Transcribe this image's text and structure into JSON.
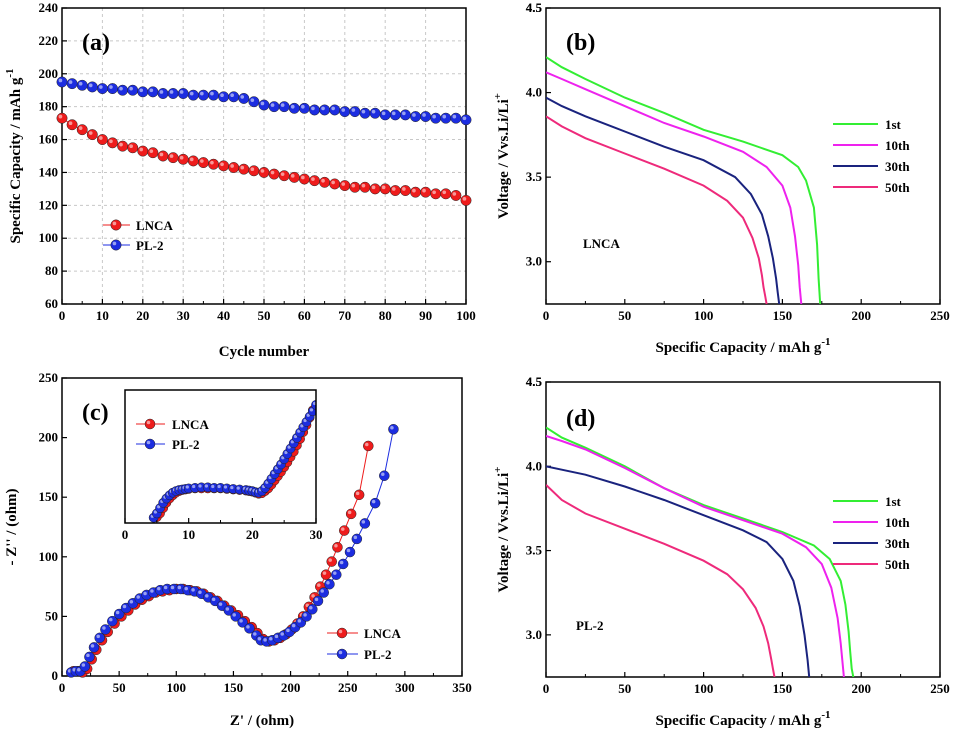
{
  "chart_data": [
    {
      "id": "a",
      "type": "scatter",
      "panel_label": "(a)",
      "xlabel": "Cycle number",
      "ylabel": "Specific Capacity / mAh g",
      "ylabel_sup": "-1",
      "xlim": [
        0,
        100
      ],
      "ylim": [
        60,
        240
      ],
      "xticks": [
        0,
        10,
        20,
        30,
        40,
        50,
        60,
        70,
        80,
        90,
        100
      ],
      "yticks": [
        60,
        80,
        100,
        120,
        140,
        160,
        180,
        200,
        220,
        240
      ],
      "grid": true,
      "legend_position": "lower-left",
      "series": [
        {
          "name": "LNCA",
          "color": "#ee1c1c",
          "x": [
            0,
            2.5,
            5,
            7.5,
            10,
            12.5,
            15,
            17.5,
            20,
            22.5,
            25,
            27.5,
            30,
            32.5,
            35,
            37.5,
            40,
            42.5,
            45,
            47.5,
            50,
            52.5,
            55,
            57.5,
            60,
            62.5,
            65,
            67.5,
            70,
            72.5,
            75,
            77.5,
            80,
            82.5,
            85,
            87.5,
            90,
            92.5,
            95,
            97.5,
            100
          ],
          "y": [
            173,
            169,
            166,
            163,
            160,
            158,
            156,
            155,
            153,
            152,
            150,
            149,
            148,
            147,
            146,
            145,
            144,
            143,
            142,
            141,
            140,
            139,
            138,
            137,
            136,
            135,
            134,
            133,
            132,
            131,
            131,
            130,
            130,
            129,
            129,
            128,
            128,
            127,
            127,
            126,
            123
          ]
        },
        {
          "name": "PL-2",
          "color": "#1c2de0",
          "x": [
            0,
            2.5,
            5,
            7.5,
            10,
            12.5,
            15,
            17.5,
            20,
            22.5,
            25,
            27.5,
            30,
            32.5,
            35,
            37.5,
            40,
            42.5,
            45,
            47.5,
            50,
            52.5,
            55,
            57.5,
            60,
            62.5,
            65,
            67.5,
            70,
            72.5,
            75,
            77.5,
            80,
            82.5,
            85,
            87.5,
            90,
            92.5,
            95,
            97.5,
            100
          ],
          "y": [
            195,
            194,
            193,
            192,
            191,
            191,
            190,
            190,
            189,
            189,
            188,
            188,
            188,
            187,
            187,
            187,
            186,
            186,
            185,
            183,
            181,
            180,
            180,
            179,
            179,
            178,
            178,
            178,
            177,
            177,
            176,
            176,
            175,
            175,
            175,
            174,
            174,
            173,
            173,
            173,
            172
          ]
        }
      ]
    },
    {
      "id": "b",
      "type": "line",
      "panel_label": "(b)",
      "xlabel": "Specific Capacity / mAh g",
      "xlabel_sup": "-1",
      "ylabel": "Voltage / Vvs.Li/Li",
      "ylabel_sup": "+",
      "xlim": [
        0,
        250
      ],
      "ylim": [
        2.75,
        4.5
      ],
      "xticks": [
        0,
        50,
        100,
        150,
        200,
        250
      ],
      "yticks": [
        3.0,
        3.5,
        4.0,
        4.5
      ],
      "annotation": "LNCA",
      "legend_position": "right",
      "series": [
        {
          "name": "1st",
          "color": "#33ee33",
          "x": [
            0,
            10,
            25,
            50,
            75,
            100,
            125,
            150,
            160,
            165,
            170,
            172,
            173,
            174
          ],
          "y": [
            4.21,
            4.15,
            4.08,
            3.97,
            3.88,
            3.78,
            3.71,
            3.63,
            3.56,
            3.48,
            3.32,
            3.1,
            2.9,
            2.75
          ]
        },
        {
          "name": "10th",
          "color": "#ee22ee",
          "x": [
            0,
            10,
            25,
            50,
            75,
            100,
            125,
            140,
            150,
            155,
            158,
            160,
            161,
            162
          ],
          "y": [
            4.12,
            4.08,
            4.02,
            3.92,
            3.82,
            3.74,
            3.65,
            3.56,
            3.45,
            3.32,
            3.15,
            2.98,
            2.85,
            2.75
          ]
        },
        {
          "name": "30th",
          "color": "#1a237e",
          "x": [
            0,
            10,
            25,
            50,
            75,
            100,
            120,
            130,
            137,
            141,
            144,
            146,
            147,
            148
          ],
          "y": [
            3.97,
            3.92,
            3.86,
            3.77,
            3.68,
            3.6,
            3.5,
            3.4,
            3.28,
            3.15,
            3.02,
            2.9,
            2.82,
            2.75
          ]
        },
        {
          "name": "50th",
          "color": "#ee2a7b",
          "x": [
            0,
            10,
            25,
            50,
            75,
            100,
            115,
            125,
            131,
            135,
            137,
            138,
            139,
            140
          ],
          "y": [
            3.86,
            3.8,
            3.73,
            3.64,
            3.55,
            3.45,
            3.36,
            3.26,
            3.14,
            3.02,
            2.92,
            2.85,
            2.8,
            2.75
          ]
        }
      ]
    },
    {
      "id": "c",
      "type": "scatter",
      "panel_label": "(c)",
      "xlabel": "Z' / (ohm)",
      "ylabel": "- Z'' / (ohm)",
      "xlim": [
        0,
        350
      ],
      "ylim": [
        0,
        250
      ],
      "xticks": [
        0,
        50,
        100,
        150,
        200,
        250,
        300,
        350
      ],
      "yticks": [
        0,
        50,
        100,
        150,
        200,
        250
      ],
      "legend_position": "lower-right",
      "series": [
        {
          "name": "LNCA",
          "color": "#ee1c1c",
          "x": [
            10,
            14,
            18,
            22,
            26,
            30,
            35,
            40,
            46,
            52,
            58,
            64,
            70,
            76,
            82,
            88,
            94,
            100,
            106,
            112,
            118,
            124,
            130,
            136,
            142,
            148,
            154,
            160,
            166,
            171,
            176,
            181,
            186,
            191,
            196,
            201,
            206,
            211,
            216,
            221,
            226,
            231,
            236,
            241,
            247,
            253,
            260,
            268
          ],
          "y": [
            4,
            4,
            3,
            6,
            14,
            22,
            30,
            37,
            44,
            50,
            55,
            60,
            64,
            67,
            70,
            71,
            72,
            73,
            73,
            72,
            71,
            69,
            66,
            63,
            59,
            55,
            51,
            46,
            41,
            36,
            31,
            29,
            30,
            32,
            35,
            39,
            44,
            50,
            58,
            66,
            75,
            85,
            96,
            108,
            122,
            136,
            152,
            193
          ]
        },
        {
          "name": "PL-2",
          "color": "#1c2de0",
          "x": [
            8,
            12,
            16,
            20,
            24,
            28,
            33,
            38,
            44,
            50,
            56,
            62,
            68,
            74,
            80,
            86,
            92,
            98,
            104,
            110,
            116,
            122,
            128,
            134,
            140,
            146,
            152,
            158,
            164,
            170,
            174,
            179,
            184,
            189,
            194,
            199,
            204,
            209,
            214,
            219,
            224,
            229,
            234,
            240,
            246,
            252,
            258,
            265,
            274,
            282,
            290
          ],
          "y": [
            3,
            4,
            4,
            8,
            16,
            24,
            32,
            39,
            46,
            52,
            57,
            61,
            65,
            68,
            70,
            72,
            73,
            73,
            73,
            72,
            71,
            69,
            66,
            63,
            59,
            55,
            50,
            45,
            40,
            34,
            30,
            29,
            30,
            32,
            34,
            37,
            41,
            45,
            50,
            56,
            63,
            70,
            77,
            85,
            94,
            104,
            115,
            128,
            145,
            168,
            207
          ]
        }
      ],
      "inset": {
        "xlim": [
          0,
          30
        ],
        "ylim": [
          0,
          250
        ],
        "xticks": [
          0,
          10,
          20,
          30
        ],
        "legend_position": "top-left",
        "series": [
          {
            "name": "LNCA",
            "color": "#ee1c1c",
            "x": [
              5,
              5.5,
              6,
              6.5,
              7,
              7.5,
              8,
              8.5,
              9,
              9.5,
              10,
              11,
              12,
              13,
              14,
              15,
              16,
              17,
              18,
              19,
              19.5,
              20,
              20.5,
              21,
              21.5,
              22,
              22.5,
              23,
              23.5,
              24,
              24.5,
              25,
              25.5,
              26,
              26.5,
              27,
              27.5,
              28,
              28.5,
              29,
              29.5
            ],
            "y": [
              11,
              18,
              28,
              38,
              46,
              52,
              57,
              60,
              62,
              63,
              64,
              65,
              65,
              65,
              65,
              65,
              64,
              63,
              62,
              61,
              60,
              59,
              57,
              55,
              56,
              60,
              65,
              72,
              80,
              88,
              96,
              105,
              114,
              124,
              134,
              146,
              158,
              171,
              184,
              198,
              212
            ]
          },
          {
            "name": "PL-2",
            "color": "#1c2de0",
            "x": [
              4.5,
              5,
              5.5,
              6,
              6.5,
              7,
              7.5,
              8,
              8.5,
              9,
              9.5,
              10,
              11,
              12,
              13,
              14,
              15,
              16,
              17,
              18,
              19,
              19.5,
              20,
              20.5,
              21,
              21.5,
              22,
              22.5,
              23,
              23.5,
              24,
              24.5,
              25,
              25.5,
              26,
              26.5,
              27,
              27.5,
              28,
              28.5,
              29,
              29.5,
              30
            ],
            "y": [
              10,
              18,
              28,
              38,
              46,
              52,
              57,
              60,
              62,
              63,
              64,
              65,
              66,
              67,
              67,
              66,
              66,
              65,
              64,
              63,
              62,
              61,
              60,
              58,
              57,
              60,
              66,
              74,
              83,
              92,
              101,
              110,
              120,
              130,
              140,
              150,
              160,
              170,
              180,
              190,
              200,
              210,
              222
            ]
          }
        ]
      }
    },
    {
      "id": "d",
      "type": "line",
      "panel_label": "(d)",
      "xlabel": "Specific Capacity / mAh g",
      "xlabel_sup": "-1",
      "ylabel": "Voltage / Vvs.Li/Li",
      "ylabel_sup": "+",
      "xlim": [
        0,
        250
      ],
      "ylim": [
        2.75,
        4.5
      ],
      "xticks": [
        0,
        50,
        100,
        150,
        200,
        250
      ],
      "yticks": [
        3.0,
        3.5,
        4.0,
        4.5
      ],
      "annotation": "PL-2",
      "legend_position": "right",
      "series": [
        {
          "name": "1st",
          "color": "#33ee33",
          "x": [
            0,
            10,
            25,
            50,
            75,
            100,
            125,
            150,
            170,
            180,
            187,
            190,
            192,
            193,
            194,
            195
          ],
          "y": [
            4.23,
            4.17,
            4.11,
            4.0,
            3.87,
            3.77,
            3.69,
            3.61,
            3.53,
            3.45,
            3.32,
            3.18,
            3.02,
            2.9,
            2.8,
            2.75
          ]
        },
        {
          "name": "10th",
          "color": "#ee22ee",
          "x": [
            0,
            10,
            25,
            50,
            75,
            100,
            125,
            150,
            165,
            175,
            181,
            185,
            187,
            188,
            189
          ],
          "y": [
            4.18,
            4.15,
            4.1,
            3.99,
            3.87,
            3.76,
            3.68,
            3.6,
            3.52,
            3.42,
            3.28,
            3.1,
            2.95,
            2.85,
            2.75
          ]
        },
        {
          "name": "30th",
          "color": "#1a237e",
          "x": [
            0,
            10,
            25,
            50,
            75,
            100,
            125,
            140,
            150,
            157,
            161,
            164,
            166,
            167
          ],
          "y": [
            4.0,
            3.98,
            3.95,
            3.88,
            3.8,
            3.71,
            3.62,
            3.55,
            3.45,
            3.32,
            3.17,
            3.0,
            2.85,
            2.75
          ]
        },
        {
          "name": "50th",
          "color": "#ee2a7b",
          "x": [
            0,
            10,
            25,
            50,
            75,
            100,
            115,
            125,
            133,
            138,
            141,
            143,
            144,
            145
          ],
          "y": [
            3.89,
            3.8,
            3.72,
            3.63,
            3.54,
            3.44,
            3.36,
            3.27,
            3.16,
            3.05,
            2.95,
            2.85,
            2.8,
            2.75
          ]
        }
      ]
    }
  ]
}
